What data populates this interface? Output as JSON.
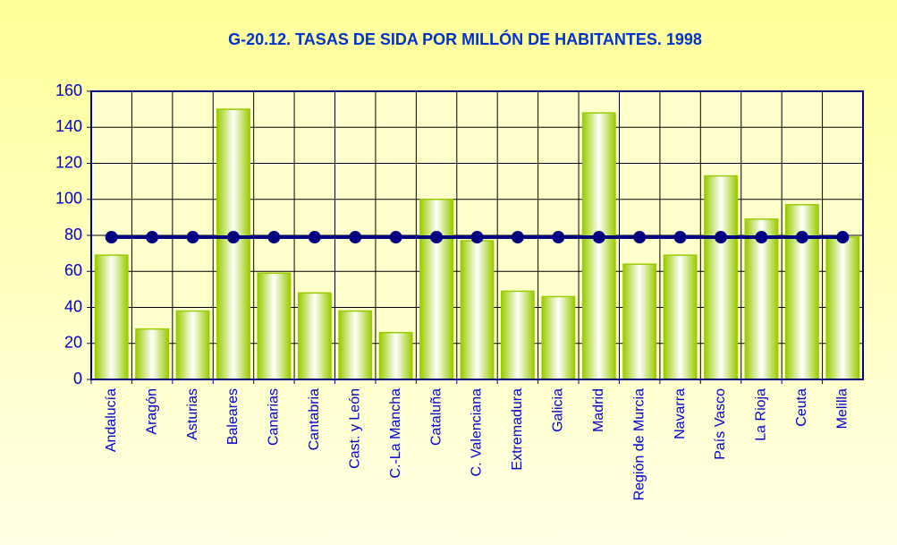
{
  "chart_data": {
    "type": "bar",
    "title": "G-20.12. TASAS DE SIDA POR MILLÓN DE HABITANTES. 1998",
    "categories": [
      "Andalucía",
      "Aragón",
      "Asturias",
      "Baleares",
      "Canarias",
      "Cantabria",
      "Cast. y León",
      "C.-La Mancha",
      "Cataluña",
      "C. Valenciana",
      "Extremadura",
      "Galicia",
      "Madrid",
      "Región de Murcia",
      "Navarra",
      "País Vasco",
      "La Rioja",
      "Ceuta",
      "Melilla"
    ],
    "series": [
      {
        "type": "bar",
        "color": "#99cc00",
        "values": [
          69,
          28,
          38,
          150,
          59,
          48,
          38,
          26,
          100,
          77,
          49,
          46,
          148,
          64,
          69,
          113,
          89,
          97,
          79
        ]
      },
      {
        "type": "line",
        "color": "#000080",
        "values": [
          79,
          79,
          79,
          79,
          79,
          79,
          79,
          79,
          79,
          79,
          79,
          79,
          79,
          79,
          79,
          79,
          79,
          79,
          79
        ]
      }
    ],
    "ylim": [
      0,
      160
    ],
    "yticks": [
      0,
      20,
      40,
      60,
      80,
      100,
      120,
      140,
      160
    ],
    "grid": true
  }
}
